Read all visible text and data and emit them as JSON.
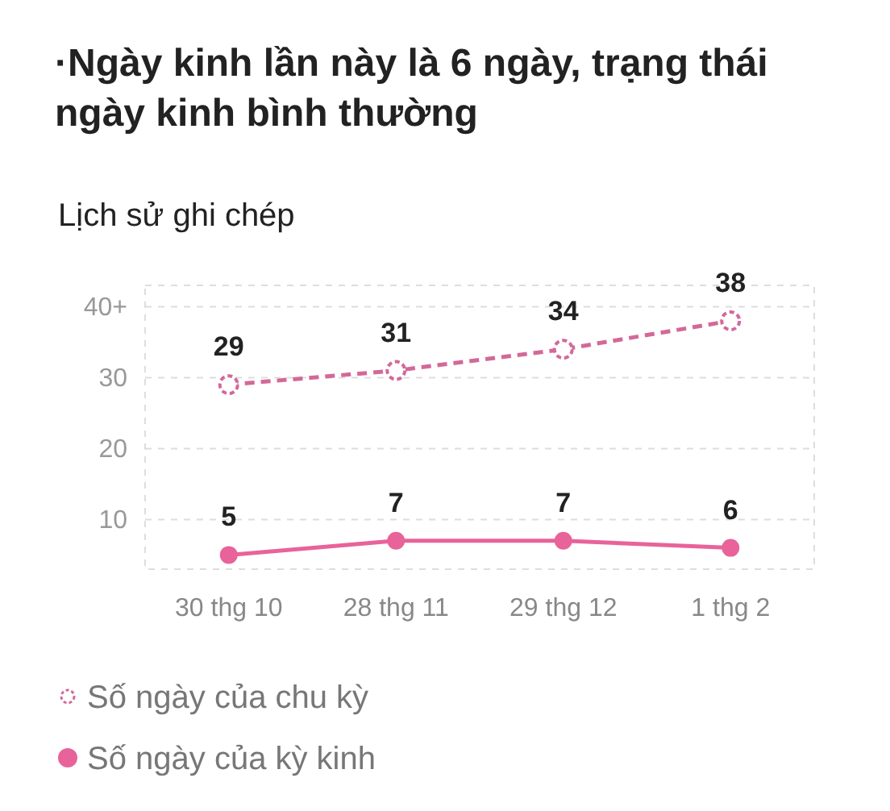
{
  "chart_data": {
    "type": "line",
    "title": "·Ngày kinh lần này là 6 ngày, trạng thái ngày kinh bình thường",
    "subtitle": "Lịch sử ghi chép",
    "categories": [
      "30 thg 10",
      "28 thg 11",
      "29 thg 12",
      "1 thg 2"
    ],
    "series": [
      {
        "name": "Số ngày của chu kỳ",
        "color": "#d4689a",
        "values": [
          29,
          31,
          34,
          38
        ],
        "line_style": "dashed",
        "marker": "circle"
      },
      {
        "name": "Số ngày của kỳ kinh",
        "color": "#e8639a",
        "values": [
          5,
          7,
          7,
          6
        ],
        "line_style": "solid",
        "marker": "circle"
      }
    ],
    "ylim": [
      3,
      43
    ],
    "yticks": [
      10,
      20,
      30,
      {
        "value": 40,
        "label": "40+"
      }
    ],
    "grid": "y",
    "data_labels": true,
    "legend": "bottom left"
  }
}
